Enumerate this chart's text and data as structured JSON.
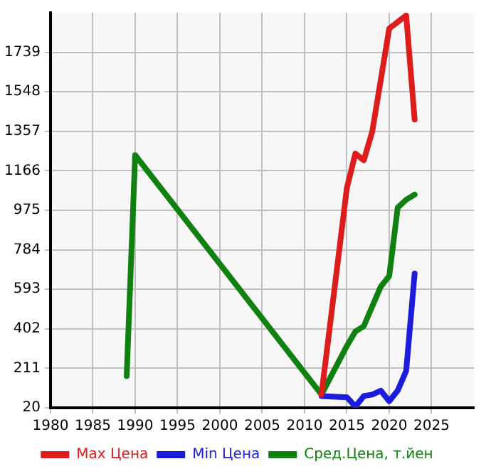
{
  "chart_data": {
    "type": "line",
    "x": [
      2012,
      2015,
      2016,
      2017,
      2018,
      2020,
      2022,
      2023
    ],
    "series": [
      {
        "name": "Max Цена",
        "color": "#dd1c1c",
        "values": [
          84,
          1083,
          1249,
          1217,
          1357,
          1854,
          1917,
          1414
        ]
      },
      {
        "name": "Min Цена",
        "color": "#1c1cdd",
        "x": [
          2012,
          2015,
          2016,
          2017,
          2018,
          2019,
          2020,
          2021,
          2022,
          2023
        ],
        "values": [
          77,
          71,
          26,
          77,
          84,
          103,
          52,
          103,
          198,
          669
        ]
      },
      {
        "name": "Сред.Цена, т.йен",
        "color": "#108010",
        "x": [
          1989,
          1990,
          2012,
          2015,
          2016,
          2017,
          2019,
          2020,
          2021,
          2022,
          2023
        ],
        "values": [
          173,
          1242,
          84,
          319,
          389,
          415,
          606,
          657,
          988,
          1026,
          1051
        ]
      }
    ],
    "xlim": [
      1980,
      2030
    ],
    "xticks": [
      1980,
      1985,
      1990,
      1995,
      2000,
      2005,
      2010,
      2015,
      2020,
      2025
    ],
    "ylim": [
      20,
      1930
    ],
    "yticks": [
      20,
      211,
      402,
      593,
      784,
      975,
      1166,
      1357,
      1548,
      1739
    ],
    "grid": true,
    "legend": "bottom",
    "marker": "none",
    "line_style": "solid"
  }
}
